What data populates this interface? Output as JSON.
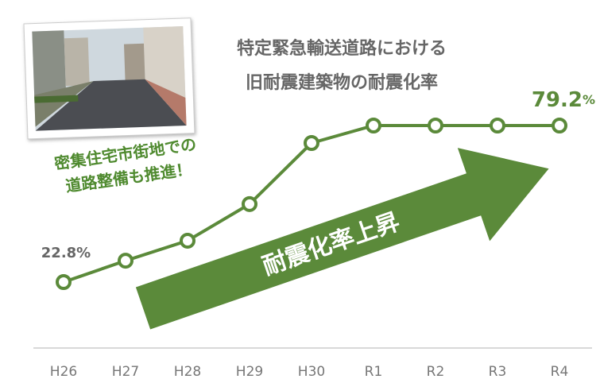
{
  "chart_data": {
    "type": "line",
    "title": [
      "特定緊急輸送道路における",
      "旧耐震建築物の耐震化率"
    ],
    "annotations": [
      "密集住宅市街地での",
      "道路整備も推進！"
    ],
    "arrow_label": "耐震化率上昇",
    "categories": [
      "H26",
      "H27",
      "H28",
      "H29",
      "H30",
      "R1",
      "R2",
      "R3",
      "R4"
    ],
    "values": [
      22.8,
      30.5,
      37.7,
      50.9,
      72.9,
      79.2,
      79.2,
      79.2,
      79.2
    ],
    "value_labels": [
      "22.8%",
      null,
      null,
      null,
      null,
      null,
      null,
      null,
      "79.2%"
    ],
    "color": "#5b8a3a"
  }
}
